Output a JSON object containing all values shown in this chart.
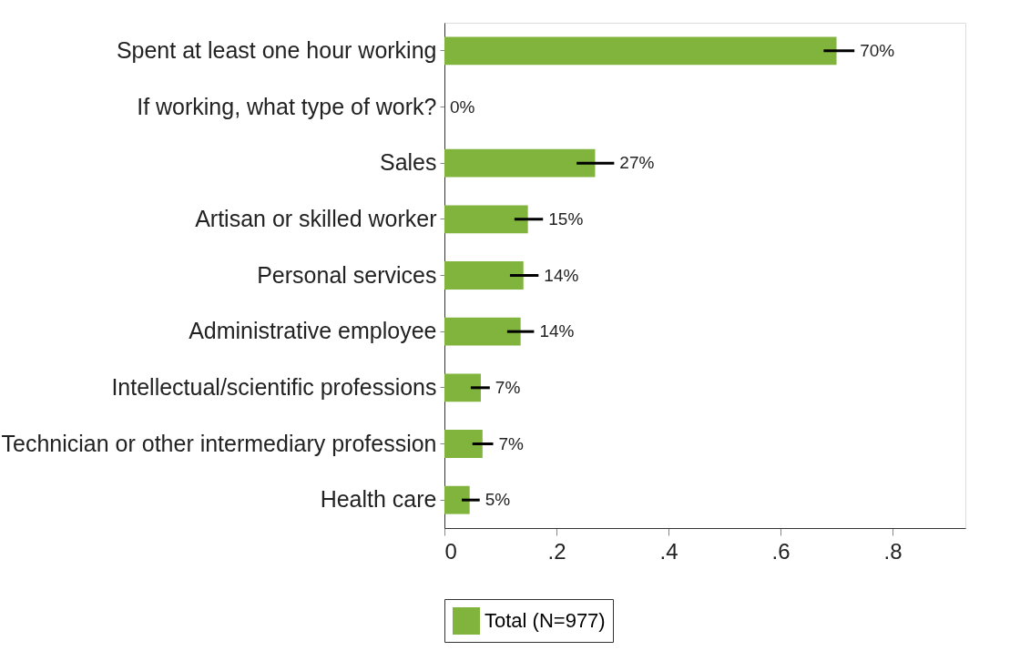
{
  "chart_data": {
    "type": "bar",
    "orientation": "horizontal",
    "categories": [
      "Spent at least one hour working",
      "If working, what type of work?",
      "Sales",
      "Artisan or skilled worker",
      "Personal services",
      "Administrative employee",
      "Intellectual/scientific professions",
      "Technician or other intermediary profession",
      "Health care"
    ],
    "series": [
      {
        "name": "Total (N=977)",
        "color": "#80b43c",
        "values": [
          0.7,
          0,
          0.269,
          0.149,
          0.141,
          0.136,
          0.065,
          0.068,
          0.045
        ],
        "errors": [
          [
            0.677,
            0.732
          ],
          null,
          [
            0.236,
            0.303
          ],
          [
            0.125,
            0.176
          ],
          [
            0.117,
            0.168
          ],
          [
            0.112,
            0.16
          ],
          [
            0.047,
            0.081
          ],
          [
            0.05,
            0.087
          ],
          [
            0.031,
            0.063
          ]
        ],
        "value_labels": [
          "70%",
          "0%",
          "27%",
          "15%",
          "14%",
          "14%",
          "7%",
          "7%",
          "5%"
        ]
      }
    ],
    "xlim": [
      0,
      0.93
    ],
    "xticks": [
      {
        "value": 0,
        "label": "0"
      },
      {
        "value": 0.2,
        "label": ".2"
      },
      {
        "value": 0.4,
        "label": ".4"
      },
      {
        "value": 0.6,
        "label": ".6"
      },
      {
        "value": 0.8,
        "label": ".8"
      }
    ],
    "grid": false,
    "legend": "bottom"
  }
}
